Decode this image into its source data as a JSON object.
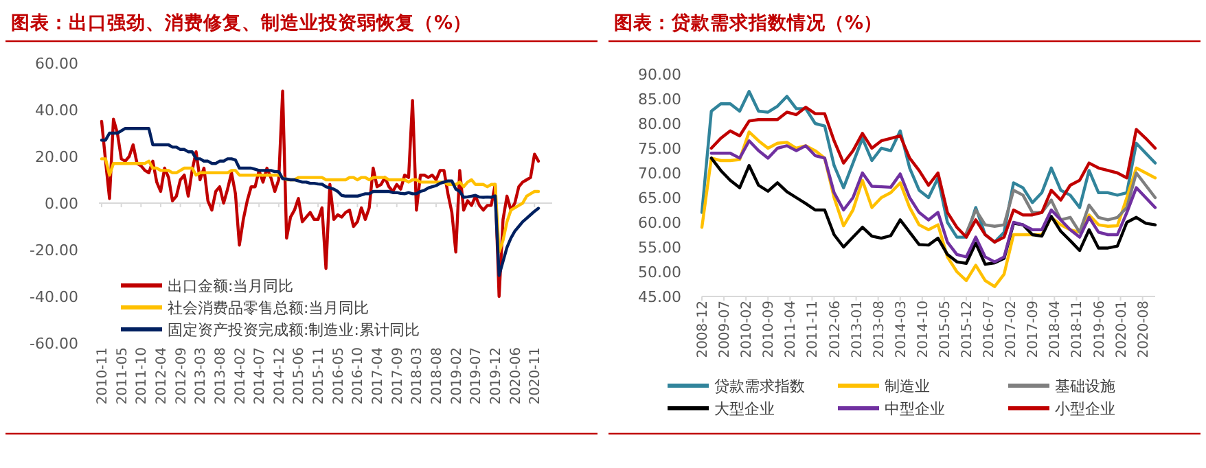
{
  "chart_data": [
    {
      "type": "line",
      "title": "图表：出口强劲、消费修复、制造业投资弱恢复（%）",
      "legend": "bottom left",
      "categories": [
        "2010-11",
        null,
        null,
        null,
        null,
        "2011-05",
        null,
        null,
        null,
        null,
        "2011-10",
        null,
        null,
        null,
        null,
        "2012-04",
        null,
        null,
        null,
        null,
        "2012-09",
        null,
        null,
        null,
        null,
        "2013-03",
        null,
        null,
        null,
        null,
        "2013-08",
        null,
        null,
        null,
        null,
        "2014-02",
        null,
        null,
        null,
        null,
        "2014-07",
        null,
        null,
        null,
        null,
        "2014-12",
        null,
        null,
        null,
        null,
        "2015-06",
        null,
        null,
        null,
        null,
        "2015-11",
        null,
        null,
        null,
        null,
        "2016-05",
        null,
        null,
        null,
        null,
        "2016-10",
        null,
        null,
        null,
        null,
        "2017-04",
        null,
        null,
        null,
        null,
        "2017-09",
        null,
        null,
        null,
        null,
        "2018-03",
        null,
        null,
        null,
        null,
        "2018-08",
        null,
        null,
        null,
        null,
        "2019-02",
        null,
        null,
        null,
        null,
        "2019-07",
        null,
        null,
        null,
        null,
        "2019-12",
        null,
        null,
        null,
        null,
        "2020-06",
        null,
        null,
        null,
        null,
        "2020-11",
        null
      ],
      "ylim": [
        -60,
        60
      ],
      "yticks": [
        {
          "value": -60,
          "label": "-60.00"
        },
        {
          "value": -40,
          "label": "-40.00"
        },
        {
          "value": -20,
          "label": "-20.00"
        },
        {
          "value": 0,
          "label": "0.00"
        },
        {
          "value": 20,
          "label": "20.00"
        },
        {
          "value": 40,
          "label": "40.00"
        },
        {
          "value": 60,
          "label": "60.00"
        }
      ],
      "series": [
        {
          "name": "出口金额:当月同比",
          "color": "#c00000",
          "values": [
            35,
            18,
            2,
            36,
            30,
            19,
            18,
            20,
            25,
            17,
            16,
            14,
            13,
            18,
            9,
            5,
            15,
            11,
            1,
            3,
            10,
            12,
            3,
            14,
            22,
            10,
            15,
            1,
            -3,
            5,
            7,
            0,
            6,
            13,
            4,
            -18,
            -7,
            1,
            7,
            7,
            14,
            9,
            15,
            11,
            5,
            10,
            48,
            -15,
            -6,
            -3,
            2,
            -8,
            -6,
            -4,
            -7,
            -7,
            -2,
            -28,
            8,
            -7,
            -5,
            -6,
            -4,
            -3,
            -10,
            -8,
            -2,
            -7,
            -2,
            15,
            7,
            8,
            11,
            7,
            5,
            8,
            6,
            12,
            11,
            44,
            -3,
            12,
            12,
            11,
            12,
            10,
            14,
            14,
            4,
            -4,
            -21,
            14,
            -3,
            1,
            -1,
            3,
            -1,
            -3,
            -1,
            -1,
            8,
            -40,
            -7,
            3,
            -3,
            0,
            7,
            9,
            10,
            11,
            21,
            18
          ]
        },
        {
          "name": "社会消费品零售总额:当月同比",
          "color": "#ffc000",
          "values": [
            19,
            19,
            12,
            17,
            17,
            17,
            17,
            17,
            17,
            17,
            17,
            17,
            18,
            15,
            15,
            14,
            14,
            14,
            13,
            13,
            14,
            15,
            15,
            15,
            12,
            13,
            13,
            13,
            13,
            13,
            13,
            13,
            13,
            14,
            14,
            12,
            12,
            12,
            12,
            12,
            12,
            12,
            12,
            12,
            12,
            12,
            11,
            10,
            10,
            10,
            11,
            11,
            11,
            11,
            11,
            11,
            11,
            10,
            10,
            10,
            10,
            10,
            10,
            11,
            11,
            10,
            11,
            11,
            10,
            11,
            11,
            11,
            11,
            10,
            10,
            10,
            10,
            10,
            9,
            10,
            10,
            9,
            9,
            9,
            9,
            9,
            9,
            9,
            8,
            8,
            8,
            9,
            7,
            9,
            10,
            8,
            8,
            8,
            7,
            8,
            8,
            -21,
            -16,
            -8,
            -3,
            -2,
            -1,
            0,
            3,
            4,
            5,
            5
          ]
        },
        {
          "name": "固定资产投资完成额:制造业:累计同比",
          "color": "#002060",
          "values": [
            27,
            27,
            30,
            30,
            30,
            31,
            32,
            32,
            32,
            32,
            32,
            32,
            32,
            25,
            25,
            25,
            25,
            25,
            24,
            24,
            23,
            23,
            22,
            22,
            19,
            19,
            18,
            18,
            17,
            17,
            18,
            18,
            19,
            19,
            18.5,
            15,
            15,
            15,
            15,
            14.5,
            14,
            14,
            14,
            14,
            13.5,
            13.5,
            10.5,
            10.3,
            10,
            10,
            9.5,
            9,
            9,
            8.5,
            8.5,
            8.2,
            8.1,
            7,
            6.5,
            6,
            5,
            3.3,
            3,
            3,
            3,
            3,
            3.5,
            4,
            4,
            5,
            5,
            5,
            5,
            5,
            4.5,
            4.5,
            4.2,
            4,
            4.5,
            4,
            4,
            5,
            5.5,
            6.5,
            7,
            7.5,
            8.5,
            9,
            9.5,
            9.5,
            6,
            5,
            2.5,
            2.7,
            3,
            3.3,
            2.6,
            2.5,
            2.6,
            2.5,
            3.1,
            -31,
            -25,
            -19,
            -15,
            -12,
            -10,
            -8,
            -6.5,
            -5,
            -3.5,
            -2.2
          ]
        }
      ]
    },
    {
      "type": "line",
      "title": "图表：贷款需求指数情况（%）",
      "legend": "bottom",
      "x": [
        "2008-12",
        "2009-03",
        "2009-06",
        "2009-09",
        "2009-12",
        "2010-03",
        "2010-06",
        "2010-09",
        "2010-12",
        "2011-03",
        "2011-06",
        "2011-09",
        "2011-12",
        "2012-03",
        "2012-06",
        "2012-09",
        "2012-12",
        "2013-03",
        "2013-06",
        "2013-09",
        "2013-12",
        "2014-03",
        "2014-06",
        "2014-09",
        "2014-12",
        "2015-03",
        "2015-06",
        "2015-09",
        "2015-12",
        "2016-03",
        "2016-06",
        "2016-09",
        "2016-12",
        "2017-03",
        "2017-06",
        "2017-09",
        "2017-12",
        "2018-03",
        "2018-06",
        "2018-09",
        "2018-12",
        "2019-03",
        "2019-06",
        "2019-09",
        "2019-12",
        "2020-03",
        "2020-06",
        "2020-09",
        "2020-12"
      ],
      "xlim": [
        "2008-12",
        "2020-12"
      ],
      "xticks": [
        "2008-12",
        "2009-07",
        "2010-02",
        "2010-09",
        "2011-04",
        "2011-11",
        "2012-06",
        "2013-01",
        "2013-08",
        "2014-03",
        "2014-10",
        "2015-05",
        "2015-12",
        "2016-07",
        "2017-02",
        "2017-09",
        "2018-04",
        "2018-11",
        "2019-06",
        "2020-01",
        "2020-08"
      ],
      "ylim": [
        45,
        90
      ],
      "yticks": [
        {
          "value": 45,
          "label": "45.00"
        },
        {
          "value": 50,
          "label": "50.00"
        },
        {
          "value": 55,
          "label": "55.00"
        },
        {
          "value": 60,
          "label": "60.00"
        },
        {
          "value": 65,
          "label": "65.00"
        },
        {
          "value": 70,
          "label": "70.00"
        },
        {
          "value": 75,
          "label": "75.00"
        },
        {
          "value": 80,
          "label": "80.00"
        },
        {
          "value": 85,
          "label": "85.00"
        },
        {
          "value": 90,
          "label": "90.00"
        }
      ],
      "series": [
        {
          "name": "贷款需求指数",
          "color": "#31849b",
          "values": [
            62,
            82.5,
            84,
            84,
            82.5,
            86.5,
            82.5,
            82.3,
            83.5,
            85.5,
            83,
            83,
            80,
            79.5,
            71.5,
            67,
            72,
            77,
            72.5,
            75,
            74.5,
            78.5,
            71,
            66.5,
            65,
            69,
            60,
            57,
            57,
            63,
            57.5,
            56,
            58,
            68,
            67,
            64,
            66,
            71,
            66.5,
            65.5,
            63,
            70.5,
            66,
            66,
            65.5,
            66,
            76,
            74,
            72
          ]
        },
        {
          "name": "制造业",
          "color": "#ffc000",
          "values": [
            59,
            73,
            72.5,
            72.5,
            72.7,
            78.3,
            76.5,
            75,
            76,
            76.2,
            75,
            75.5,
            74.5,
            73,
            65,
            59.3,
            62.5,
            68.5,
            63,
            65,
            66,
            68,
            63,
            59.5,
            58.5,
            59.5,
            53,
            50,
            48.2,
            51.3,
            48.2,
            47,
            49.5,
            57.5,
            57.5,
            57.5,
            57.5,
            61,
            59.5,
            58.5,
            58,
            61.5,
            59.5,
            59.2,
            59.3,
            65,
            71,
            70,
            69
          ]
        },
        {
          "name": "基础设施",
          "color": "#7f7f7f",
          "values": [
            null,
            null,
            null,
            null,
            null,
            null,
            null,
            null,
            null,
            null,
            null,
            null,
            null,
            null,
            null,
            null,
            null,
            null,
            null,
            null,
            null,
            null,
            null,
            null,
            null,
            null,
            null,
            null,
            57.8,
            62.5,
            59.5,
            59.2,
            59.5,
            66.5,
            65.5,
            62,
            62,
            64.5,
            60.5,
            61,
            58,
            63.5,
            61,
            60.5,
            61,
            63,
            70,
            67.5,
            65
          ]
        },
        {
          "name": "大型企业",
          "color": "#000000",
          "values": [
            null,
            73,
            70.5,
            68.5,
            67,
            71.5,
            67.5,
            66.3,
            68,
            66.2,
            65,
            63.8,
            62.5,
            62.5,
            57.5,
            55,
            57,
            59,
            57.2,
            56.8,
            57.3,
            60.5,
            58,
            55.5,
            55.4,
            56.8,
            53.5,
            52,
            51.7,
            55.8,
            51.5,
            51.8,
            52.7,
            59.8,
            59.5,
            57.5,
            57.2,
            61.2,
            58.2,
            56.3,
            54.3,
            58.5,
            54.8,
            54.8,
            55.2,
            60,
            61,
            59.8,
            59.5
          ]
        },
        {
          "name": "中型企业",
          "color": "#7030a0",
          "values": [
            null,
            74,
            74,
            74,
            73,
            76.5,
            74.5,
            73,
            75,
            75.5,
            74.5,
            75.5,
            73.5,
            73,
            66,
            62.5,
            65,
            70,
            67.3,
            67.2,
            67.1,
            69.8,
            65,
            62,
            60.5,
            62,
            56,
            53.5,
            53,
            57,
            53,
            52,
            53,
            60,
            59.5,
            58.5,
            58.5,
            62.5,
            60.5,
            58.5,
            57,
            61,
            58,
            57.5,
            57.5,
            62,
            67,
            65,
            63
          ]
        },
        {
          "name": "小型企业",
          "color": "#c00000",
          "values": [
            null,
            75,
            77,
            78.5,
            77.5,
            80.5,
            80.8,
            80.8,
            80.8,
            82.3,
            81.8,
            83.3,
            82,
            82,
            76.5,
            72,
            74.5,
            78,
            75,
            76.5,
            77,
            77.5,
            73,
            70.5,
            67.5,
            70,
            62,
            59,
            57,
            60.5,
            57.5,
            56,
            57,
            62.5,
            61.5,
            61.5,
            62,
            66.5,
            64.5,
            67.5,
            68.5,
            72,
            71,
            70.5,
            70,
            69,
            78.8,
            77,
            75
          ]
        }
      ]
    }
  ]
}
